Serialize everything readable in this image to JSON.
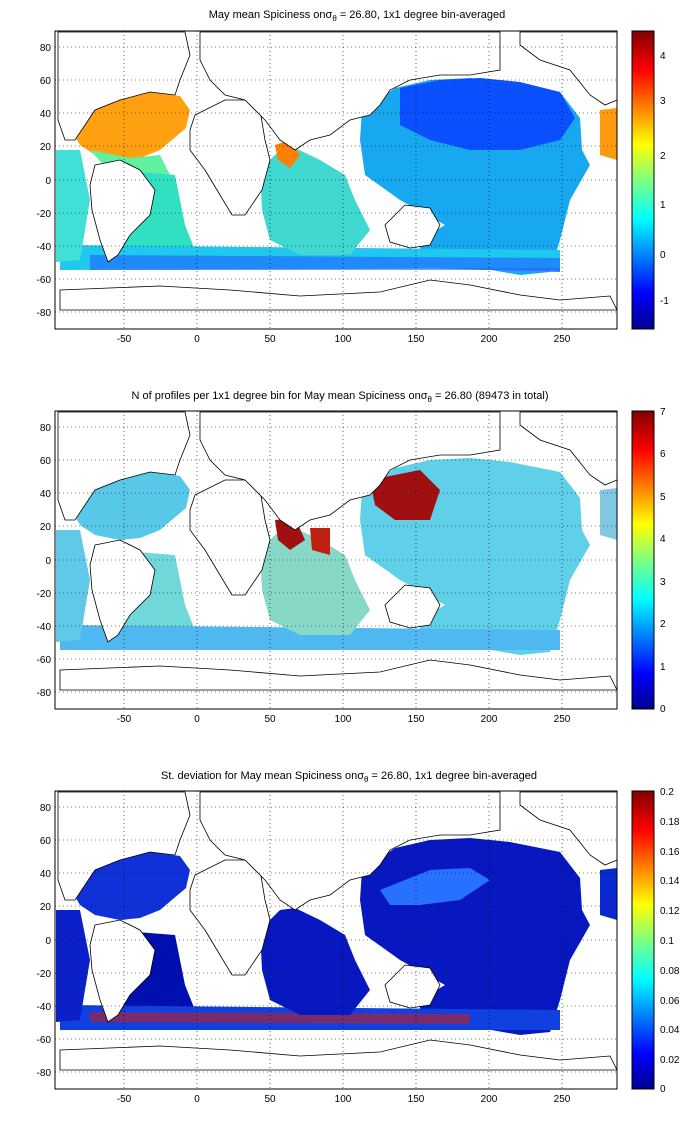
{
  "figure": {
    "panels": [
      {
        "title_prefix": "May mean Spiciness on",
        "title_symbol": "σ",
        "title_subscript": "θ",
        "title_suffix": " = 26.80, 1x1 degree bin-averaged",
        "colorbar": {
          "colormap": "jet",
          "ticks": [
            "4",
            "3",
            "2",
            "1",
            "0",
            "-1"
          ],
          "range": [
            -1.5,
            4.5
          ]
        }
      },
      {
        "title_prefix": "N of profiles per 1x1 degree bin for May mean Spiciness on",
        "title_symbol": "σ",
        "title_subscript": "θ",
        "title_suffix": " = 26.80 (89473 in total)",
        "colorbar": {
          "colormap": "jet",
          "ticks": [
            "7",
            "6",
            "5",
            "4",
            "3",
            "2",
            "1",
            "0"
          ],
          "range": [
            0,
            7
          ]
        }
      },
      {
        "title_prefix": "St. deviation for May mean Spiciness on",
        "title_symbol": "σ",
        "title_subscript": "θ",
        "title_suffix": " = 26.80, 1x1 degree bin-averaged",
        "colorbar": {
          "colormap": "jet",
          "ticks": [
            "0.2",
            "0.18",
            "0.16",
            "0.14",
            "0.12",
            "0.1",
            "0.08",
            "0.06",
            "0.04",
            "0.02",
            "0"
          ],
          "range": [
            0,
            0.2
          ]
        }
      }
    ],
    "x_ticks": [
      "-50",
      "0",
      "50",
      "100",
      "150",
      "200",
      "250"
    ],
    "y_ticks": [
      "80",
      "60",
      "40",
      "20",
      "0",
      "-20",
      "-40",
      "-60",
      "-80"
    ],
    "x_range": [
      -95,
      290
    ],
    "y_range": [
      -90,
      90
    ],
    "grid": "dotted",
    "colors": {
      "land": "#ffffff",
      "coast": "#000000",
      "frame": "#000000"
    }
  }
}
